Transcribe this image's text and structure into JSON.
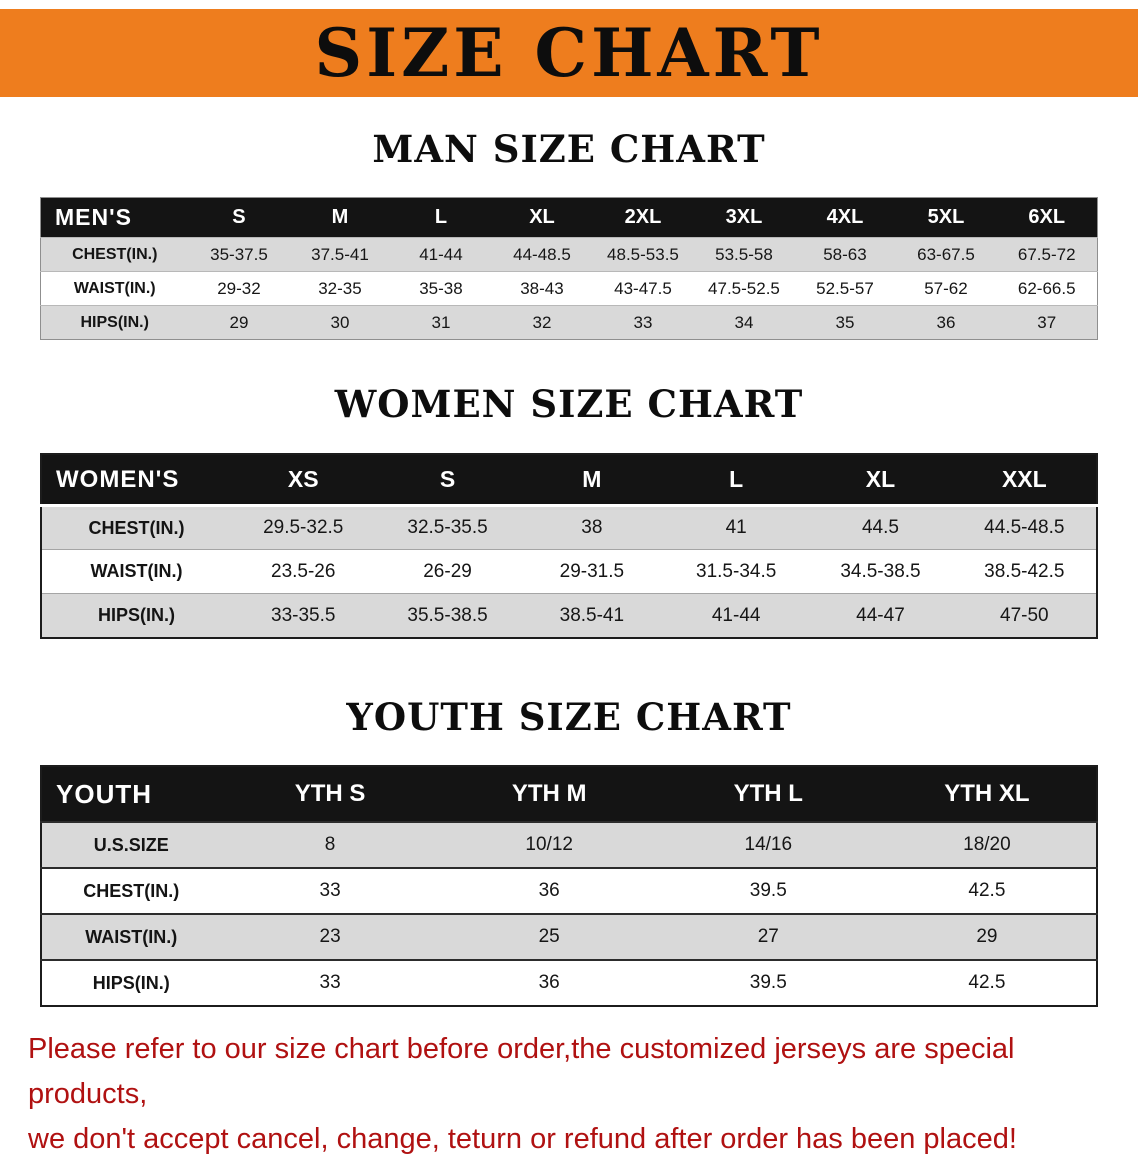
{
  "banner": {
    "title": "SIZE CHART"
  },
  "men": {
    "heading": "MAN SIZE CHART",
    "corner": "MEN'S",
    "sizes": [
      "S",
      "M",
      "L",
      "XL",
      "2XL",
      "3XL",
      "4XL",
      "5XL",
      "6XL"
    ],
    "rows": [
      {
        "label": "CHEST(IN.)",
        "values": [
          "35-37.5",
          "37.5-41",
          "41-44",
          "44-48.5",
          "48.5-53.5",
          "53.5-58",
          "58-63",
          "63-67.5",
          "67.5-72"
        ]
      },
      {
        "label": "WAIST(IN.)",
        "values": [
          "29-32",
          "32-35",
          "35-38",
          "38-43",
          "43-47.5",
          "47.5-52.5",
          "52.5-57",
          "57-62",
          "62-66.5"
        ]
      },
      {
        "label": "HIPS(IN.)",
        "values": [
          "29",
          "30",
          "31",
          "32",
          "33",
          "34",
          "35",
          "36",
          "37"
        ]
      }
    ]
  },
  "women": {
    "heading": "WOMEN SIZE CHART",
    "corner": "WOMEN'S",
    "sizes": [
      "XS",
      "S",
      "M",
      "L",
      "XL",
      "XXL"
    ],
    "rows": [
      {
        "label": "CHEST(IN.)",
        "values": [
          "29.5-32.5",
          "32.5-35.5",
          "38",
          "41",
          "44.5",
          "44.5-48.5"
        ]
      },
      {
        "label": "WAIST(IN.)",
        "values": [
          "23.5-26",
          "26-29",
          "29-31.5",
          "31.5-34.5",
          "34.5-38.5",
          "38.5-42.5"
        ]
      },
      {
        "label": "HIPS(IN.)",
        "values": [
          "33-35.5",
          "35.5-38.5",
          "38.5-41",
          "41-44",
          "44-47",
          "47-50"
        ]
      }
    ]
  },
  "youth": {
    "heading": "YOUTH SIZE CHART",
    "corner": "YOUTH",
    "sizes": [
      "YTH S",
      "YTH M",
      "YTH L",
      "YTH XL"
    ],
    "rows": [
      {
        "label": "U.S.SIZE",
        "values": [
          "8",
          "10/12",
          "14/16",
          "18/20"
        ]
      },
      {
        "label": "CHEST(IN.)",
        "values": [
          "33",
          "36",
          "39.5",
          "42.5"
        ]
      },
      {
        "label": "WAIST(IN.)",
        "values": [
          "23",
          "25",
          "27",
          "29"
        ]
      },
      {
        "label": "HIPS(IN.)",
        "values": [
          "33",
          "36",
          "39.5",
          "42.5"
        ]
      }
    ]
  },
  "disclaimer": {
    "line1": "Please refer to our size chart before order,the customized jerseys are special products,",
    "line2": "we don't accept cancel, change, teturn or refund after order has been placed!"
  },
  "colors": {
    "banner_bg": "#ee7d1e",
    "table_header_bg": "#141414",
    "row_alt_bg": "#d9d9d9",
    "disclaimer_text": "#b01111"
  }
}
